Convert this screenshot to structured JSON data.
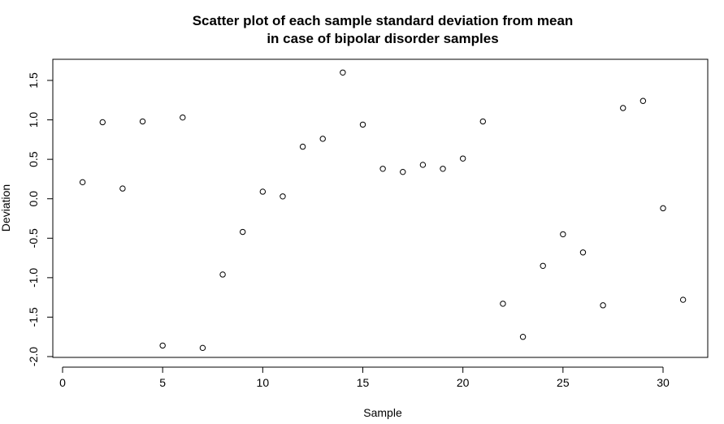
{
  "chart_data": {
    "type": "scatter",
    "title": "Scatter plot of each sample standard deviation from mean",
    "subtitle": "in case of bipolar disorder samples",
    "xlabel": "Sample",
    "ylabel": "Deviation",
    "xlim": [
      0,
      32
    ],
    "ylim": [
      -2.0,
      1.75
    ],
    "xticks": [
      0,
      5,
      10,
      15,
      20,
      25,
      30
    ],
    "yticks": [
      -2.0,
      -1.5,
      -1.0,
      -0.5,
      0.0,
      0.5,
      1.0,
      1.5
    ],
    "xtick_labels": [
      "0",
      "5",
      "10",
      "15",
      "20",
      "25",
      "30"
    ],
    "ytick_labels": [
      "-2.0",
      "-1.5",
      "-1.0",
      "-0.5",
      "0.0",
      "0.5",
      "1.0",
      "1.5"
    ],
    "grid": false,
    "marker": "open-circle",
    "series": [
      {
        "x": [
          1,
          2,
          3,
          4,
          5,
          6,
          7,
          8,
          9,
          10,
          11,
          12,
          13,
          14,
          15,
          16,
          17,
          18,
          19,
          20,
          21,
          22,
          23,
          24,
          25,
          26,
          27,
          28,
          29,
          30,
          31
        ],
        "y": [
          0.21,
          0.97,
          0.13,
          0.98,
          -1.86,
          1.03,
          -1.89,
          -0.96,
          -0.42,
          0.09,
          0.03,
          0.66,
          0.76,
          1.6,
          0.94,
          0.38,
          0.34,
          0.43,
          0.38,
          0.51,
          0.98,
          -1.33,
          -1.75,
          -0.85,
          -0.45,
          -0.68,
          -1.35,
          1.15,
          1.24,
          -0.12,
          -1.28
        ]
      }
    ]
  }
}
